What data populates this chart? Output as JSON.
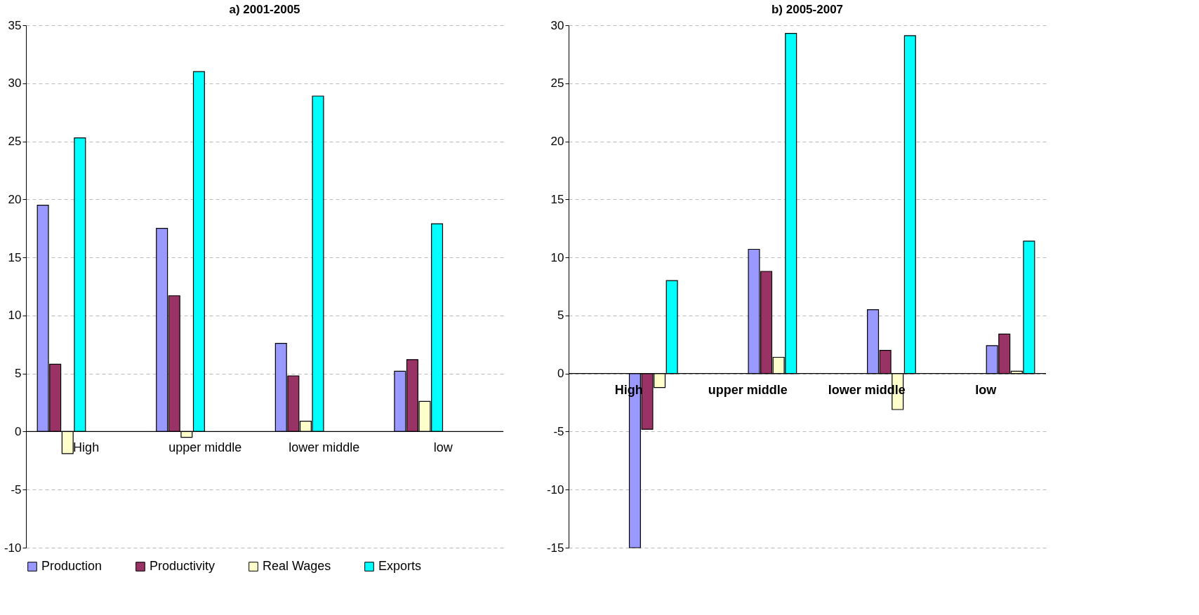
{
  "chart_data": [
    {
      "type": "bar",
      "title": "a) 2001-2005",
      "categories": [
        "High",
        "upper middle",
        "lower middle",
        "low"
      ],
      "series": [
        {
          "name": "Production",
          "color": "#9999ff",
          "values": [
            19.5,
            17.5,
            7.6,
            5.2
          ]
        },
        {
          "name": "Productivity",
          "color": "#993366",
          "values": [
            5.8,
            11.7,
            4.8,
            6.2
          ]
        },
        {
          "name": "Real Wages",
          "color": "#ffffcc",
          "values": [
            -1.9,
            -0.5,
            0.9,
            2.6
          ]
        },
        {
          "name": "Exports",
          "color": "#00ffff",
          "values": [
            25.3,
            31.0,
            28.9,
            17.9
          ]
        }
      ],
      "ylim": [
        -10,
        35
      ],
      "yticks": [
        -10,
        -5,
        0,
        5,
        10,
        15,
        20,
        25,
        30,
        35
      ],
      "grid": "y",
      "legend": "bottom"
    },
    {
      "type": "bar",
      "title": "b) 2005-2007",
      "categories": [
        "High",
        "upper middle",
        "lower middle",
        "low"
      ],
      "series": [
        {
          "color": "#9999ff",
          "values": [
            -15,
            10.7,
            5.5,
            2.4
          ]
        },
        {
          "color": "#993366",
          "values": [
            -4.8,
            8.8,
            2.0,
            3.4
          ]
        },
        {
          "color": "#ffffcc",
          "values": [
            -1.2,
            1.4,
            -3.1,
            0.2
          ]
        },
        {
          "color": "#00ffff",
          "values": [
            8.0,
            29.3,
            29.1,
            11.4
          ]
        }
      ],
      "ylim": [
        -15,
        30
      ],
      "yticks": [
        -15,
        -10,
        -5,
        0,
        5,
        10,
        15,
        20,
        25,
        30
      ],
      "grid": "y",
      "legend": false
    }
  ]
}
